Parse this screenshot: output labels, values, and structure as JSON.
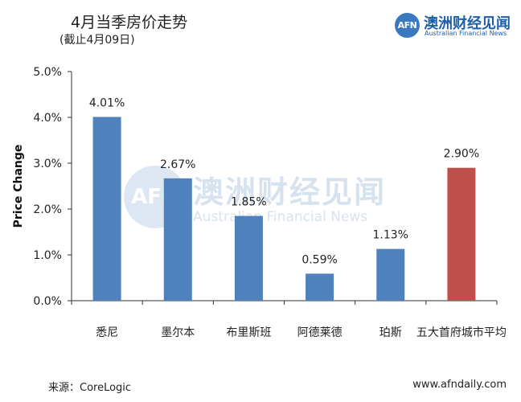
{
  "header": {
    "title": "4月当季房价走势",
    "subtitle": "(截止4月09日)"
  },
  "brand": {
    "logo_text": "AFN",
    "name": "澳洲财经见闻",
    "sub": "Australian Financial News",
    "color": "#1f5fa8"
  },
  "watermark": {
    "logo_text": "AFN",
    "name": "澳洲财经见闻",
    "sub": "Australian Financial News"
  },
  "footer": {
    "source": "来源：CoreLogic",
    "website": "www.afndaily.com"
  },
  "chart_data": {
    "type": "bar",
    "title": "4月当季房价走势",
    "subtitle": "(截止4月09日)",
    "xlabel": "",
    "ylabel": "Price Change",
    "categories": [
      "悉尼",
      "墨尔本",
      "布里斯班",
      "阿德莱德",
      "珀斯",
      "五大首府城市平均"
    ],
    "values": [
      4.01,
      2.67,
      1.85,
      0.59,
      1.13,
      2.9
    ],
    "value_labels": [
      "4.01%",
      "2.67%",
      "1.85%",
      "0.59%",
      "1.13%",
      "2.90%"
    ],
    "colors": [
      "#4f81bd",
      "#4f81bd",
      "#4f81bd",
      "#4f81bd",
      "#4f81bd",
      "#c0504d"
    ],
    "ylim": [
      0,
      5
    ],
    "yticks": [
      0,
      1,
      2,
      3,
      4,
      5
    ],
    "ytick_labels": [
      "0.0%",
      "1.0%",
      "2.0%",
      "3.0%",
      "4.0%",
      "5.0%"
    ],
    "grid": false,
    "legend": "none"
  }
}
